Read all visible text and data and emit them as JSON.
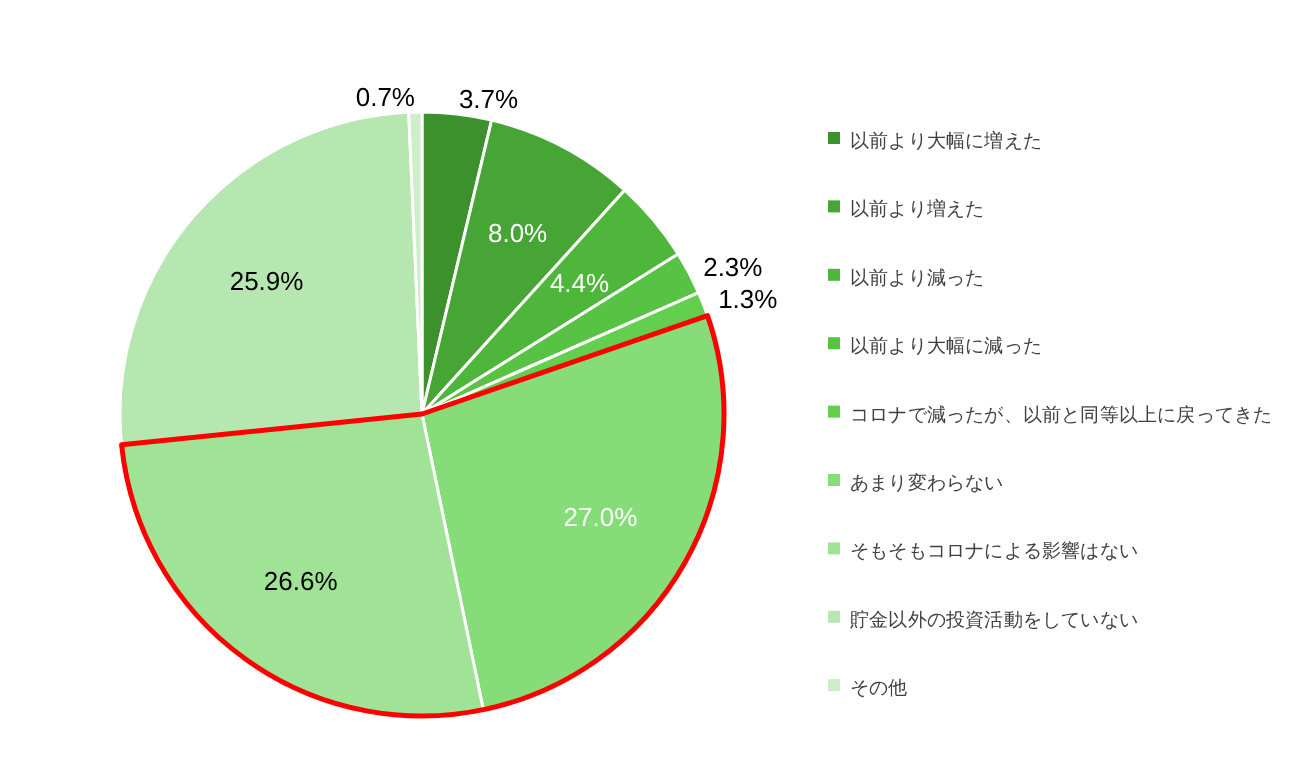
{
  "chart_data": {
    "type": "pie",
    "categories": [
      "以前より大幅に増えた",
      "以前より増えた",
      "以前より減った",
      "以前より大幅に減った",
      "コロナで減ったが、以前と同等以上に戻ってきた",
      "あまり変わらない",
      "そもそもコロナによる影響はない",
      "貯金以外の投資活動をしていない",
      "その他"
    ],
    "values": [
      3.7,
      8.0,
      4.4,
      2.3,
      1.3,
      27.0,
      26.6,
      25.9,
      0.7
    ],
    "value_labels": [
      "3.7%",
      "8.0%",
      "4.4%",
      "2.3%",
      "1.3%",
      "27.0%",
      "26.6%",
      "25.9%",
      "0.7%"
    ],
    "colors": [
      "#3c912c",
      "#46a535",
      "#4fb63c",
      "#57c244",
      "#62cf4e",
      "#86dc78",
      "#a1e396",
      "#b7e7b0",
      "#cdeec8"
    ],
    "legend": "right"
  }
}
